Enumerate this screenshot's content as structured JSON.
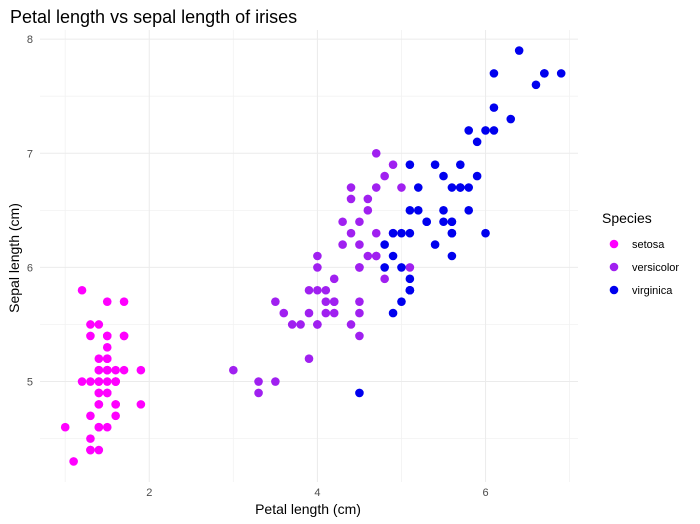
{
  "chart_data": {
    "type": "scatter",
    "title": "Petal length vs sepal length of irises",
    "xlabel": "Petal length (cm)",
    "ylabel": "Sepal length (cm)",
    "xlim": [
      0.7,
      7.1
    ],
    "ylim": [
      4.12,
      8.08
    ],
    "x_ticks": [
      2,
      4,
      6
    ],
    "y_ticks": [
      5,
      6,
      7,
      8
    ],
    "grid": true,
    "legend": {
      "title": "Species",
      "placement": "right"
    },
    "series": [
      {
        "name": "setosa",
        "color": "#ff00ff",
        "points": [
          [
            1.4,
            5.1
          ],
          [
            1.4,
            4.9
          ],
          [
            1.3,
            4.7
          ],
          [
            1.5,
            4.6
          ],
          [
            1.4,
            5.0
          ],
          [
            1.7,
            5.4
          ],
          [
            1.4,
            4.6
          ],
          [
            1.5,
            5.0
          ],
          [
            1.4,
            4.4
          ],
          [
            1.5,
            4.9
          ],
          [
            1.5,
            5.4
          ],
          [
            1.6,
            4.8
          ],
          [
            1.4,
            4.8
          ],
          [
            1.1,
            4.3
          ],
          [
            1.2,
            5.8
          ],
          [
            1.5,
            5.7
          ],
          [
            1.3,
            5.4
          ],
          [
            1.4,
            5.1
          ],
          [
            1.7,
            5.7
          ],
          [
            1.5,
            5.1
          ],
          [
            1.7,
            5.4
          ],
          [
            1.5,
            5.1
          ],
          [
            1.0,
            4.6
          ],
          [
            1.7,
            5.1
          ],
          [
            1.9,
            4.8
          ],
          [
            1.6,
            5.0
          ],
          [
            1.6,
            5.0
          ],
          [
            1.5,
            5.2
          ],
          [
            1.4,
            5.2
          ],
          [
            1.6,
            4.7
          ],
          [
            1.6,
            4.8
          ],
          [
            1.5,
            5.4
          ],
          [
            1.5,
            5.2
          ],
          [
            1.4,
            5.5
          ],
          [
            1.5,
            4.9
          ],
          [
            1.2,
            5.0
          ],
          [
            1.3,
            5.5
          ],
          [
            1.4,
            4.9
          ],
          [
            1.3,
            4.4
          ],
          [
            1.5,
            5.1
          ],
          [
            1.3,
            5.0
          ],
          [
            1.3,
            4.5
          ],
          [
            1.3,
            4.4
          ],
          [
            1.6,
            5.0
          ],
          [
            1.9,
            5.1
          ],
          [
            1.4,
            4.8
          ],
          [
            1.6,
            5.1
          ],
          [
            1.4,
            4.6
          ],
          [
            1.5,
            5.3
          ],
          [
            1.4,
            5.0
          ]
        ]
      },
      {
        "name": "versicolor",
        "color": "#a020f0",
        "points": [
          [
            4.7,
            7.0
          ],
          [
            4.5,
            6.4
          ],
          [
            4.9,
            6.9
          ],
          [
            4.0,
            5.5
          ],
          [
            4.6,
            6.5
          ],
          [
            4.5,
            5.7
          ],
          [
            4.7,
            6.3
          ],
          [
            3.3,
            4.9
          ],
          [
            4.6,
            6.6
          ],
          [
            3.9,
            5.2
          ],
          [
            3.5,
            5.0
          ],
          [
            4.2,
            5.9
          ],
          [
            4.0,
            6.0
          ],
          [
            4.7,
            6.1
          ],
          [
            3.6,
            5.6
          ],
          [
            4.4,
            6.7
          ],
          [
            4.5,
            5.6
          ],
          [
            4.1,
            5.8
          ],
          [
            4.5,
            6.2
          ],
          [
            3.9,
            5.6
          ],
          [
            4.8,
            5.9
          ],
          [
            4.0,
            6.1
          ],
          [
            4.9,
            6.3
          ],
          [
            4.7,
            6.1
          ],
          [
            4.3,
            6.4
          ],
          [
            4.4,
            6.6
          ],
          [
            4.8,
            6.8
          ],
          [
            5.0,
            6.7
          ],
          [
            4.5,
            6.0
          ],
          [
            3.5,
            5.7
          ],
          [
            3.8,
            5.5
          ],
          [
            3.7,
            5.5
          ],
          [
            3.9,
            5.8
          ],
          [
            5.1,
            6.0
          ],
          [
            4.5,
            5.4
          ],
          [
            4.5,
            6.0
          ],
          [
            4.7,
            6.7
          ],
          [
            4.4,
            6.3
          ],
          [
            4.1,
            5.6
          ],
          [
            4.0,
            5.5
          ],
          [
            4.4,
            5.5
          ],
          [
            4.6,
            6.1
          ],
          [
            4.0,
            5.8
          ],
          [
            3.3,
            5.0
          ],
          [
            4.2,
            5.6
          ],
          [
            4.2,
            5.7
          ],
          [
            4.2,
            5.7
          ],
          [
            4.3,
            6.2
          ],
          [
            3.0,
            5.1
          ],
          [
            4.1,
            5.7
          ]
        ]
      },
      {
        "name": "virginica",
        "color": "#0000ee",
        "points": [
          [
            6.0,
            6.3
          ],
          [
            5.1,
            5.8
          ],
          [
            5.9,
            7.1
          ],
          [
            5.6,
            6.3
          ],
          [
            5.8,
            6.5
          ],
          [
            6.6,
            7.6
          ],
          [
            4.5,
            4.9
          ],
          [
            6.3,
            7.3
          ],
          [
            5.8,
            6.7
          ],
          [
            6.1,
            7.2
          ],
          [
            5.1,
            6.5
          ],
          [
            5.3,
            6.4
          ],
          [
            5.5,
            6.8
          ],
          [
            5.0,
            5.7
          ],
          [
            5.1,
            5.8
          ],
          [
            5.3,
            6.4
          ],
          [
            5.5,
            6.5
          ],
          [
            6.7,
            7.7
          ],
          [
            6.9,
            7.7
          ],
          [
            5.0,
            6.0
          ],
          [
            5.7,
            6.9
          ],
          [
            4.9,
            5.6
          ],
          [
            6.7,
            7.7
          ],
          [
            4.9,
            6.3
          ],
          [
            5.7,
            6.7
          ],
          [
            6.0,
            7.2
          ],
          [
            4.8,
            6.2
          ],
          [
            4.9,
            6.1
          ],
          [
            5.6,
            6.4
          ],
          [
            5.8,
            7.2
          ],
          [
            6.1,
            7.4
          ],
          [
            6.4,
            7.9
          ],
          [
            5.6,
            6.4
          ],
          [
            5.1,
            6.3
          ],
          [
            5.6,
            6.1
          ],
          [
            6.1,
            7.7
          ],
          [
            5.6,
            6.3
          ],
          [
            5.5,
            6.4
          ],
          [
            4.8,
            6.0
          ],
          [
            5.4,
            6.9
          ],
          [
            5.6,
            6.7
          ],
          [
            5.1,
            6.9
          ],
          [
            5.1,
            5.8
          ],
          [
            5.9,
            6.8
          ],
          [
            5.7,
            6.7
          ],
          [
            5.2,
            6.7
          ],
          [
            5.0,
            6.3
          ],
          [
            5.2,
            6.5
          ],
          [
            5.4,
            6.2
          ],
          [
            5.1,
            5.9
          ]
        ]
      }
    ]
  }
}
